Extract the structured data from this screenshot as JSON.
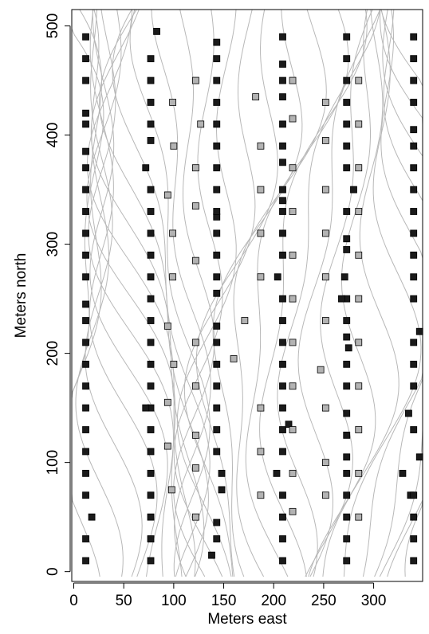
{
  "chart_data": {
    "type": "scatter",
    "x_label": "Meters east",
    "y_label": "Meters north",
    "xlim": [
      -2,
      349
    ],
    "ylim": [
      -9,
      515
    ],
    "xticks": [
      0,
      50,
      100,
      150,
      200,
      250,
      300
    ],
    "yticks": [
      0,
      100,
      200,
      300,
      400,
      500
    ],
    "series": [
      {
        "color": "#1a1a1a",
        "x": [
          12,
          12,
          12,
          12,
          12,
          12,
          12,
          12,
          12,
          12,
          12,
          12,
          12,
          12,
          12,
          12,
          12,
          12,
          12,
          12,
          12,
          12,
          12,
          12,
          18,
          77,
          77,
          77,
          77,
          77,
          77,
          77,
          77,
          77,
          77,
          77,
          77,
          77,
          77,
          77,
          77,
          77,
          77,
          72,
          77,
          77,
          77,
          77,
          77,
          83,
          72,
          138,
          143,
          143,
          148,
          148,
          143,
          143,
          143,
          143,
          143,
          143,
          143,
          143,
          143,
          143,
          143,
          143,
          143,
          143,
          143,
          143,
          143,
          143,
          143,
          143,
          143,
          209,
          209,
          209,
          209,
          203,
          209,
          209,
          215,
          209,
          209,
          209,
          209,
          209,
          209,
          204,
          209,
          209,
          209,
          209,
          209,
          209,
          209,
          209,
          209,
          209,
          209,
          209,
          273,
          273,
          273,
          273,
          273,
          273,
          273,
          273,
          273,
          273,
          275,
          273,
          273,
          273,
          271,
          273,
          273,
          273,
          280,
          273,
          273,
          273,
          273,
          273,
          273,
          273,
          268,
          340,
          340,
          340,
          337,
          329,
          346,
          340,
          335,
          340,
          340,
          340,
          346,
          340,
          340,
          340,
          340,
          340,
          340,
          340,
          340,
          340,
          340,
          340,
          340,
          340,
          340
        ],
        "values": [
          10,
          30,
          70,
          90,
          110,
          130,
          150,
          170,
          190,
          210,
          230,
          245,
          270,
          290,
          310,
          330,
          350,
          370,
          385,
          410,
          420,
          450,
          470,
          490,
          50,
          10,
          30,
          50,
          70,
          90,
          110,
          130,
          150,
          170,
          190,
          210,
          230,
          250,
          270,
          290,
          310,
          330,
          350,
          370,
          395,
          410,
          430,
          450,
          470,
          495,
          150,
          15,
          30,
          45,
          75,
          90,
          110,
          130,
          150,
          170,
          190,
          210,
          225,
          255,
          270,
          290,
          310,
          325,
          330,
          350,
          370,
          390,
          410,
          430,
          450,
          470,
          485,
          10,
          30,
          50,
          70,
          90,
          110,
          130,
          135,
          150,
          170,
          190,
          210,
          230,
          250,
          270,
          290,
          310,
          330,
          340,
          350,
          375,
          390,
          410,
          435,
          450,
          465,
          490,
          10,
          30,
          50,
          70,
          90,
          105,
          125,
          145,
          170,
          190,
          205,
          215,
          230,
          250,
          270,
          295,
          305,
          330,
          350,
          370,
          390,
          410,
          430,
          450,
          470,
          490,
          250,
          10,
          30,
          50,
          70,
          90,
          105,
          130,
          145,
          170,
          190,
          210,
          220,
          250,
          270,
          290,
          310,
          330,
          350,
          370,
          390,
          405,
          430,
          450,
          470,
          490,
          70
        ]
      },
      {
        "color": "#b3b3b3",
        "x": [
          98,
          94,
          94,
          100,
          94,
          99,
          99,
          100,
          99,
          94,
          122,
          122,
          122,
          122,
          122,
          122,
          122,
          122,
          127,
          122,
          160,
          171,
          187,
          187,
          187,
          187,
          187,
          187,
          187,
          182,
          219,
          219,
          219,
          219,
          219,
          219,
          219,
          219,
          219,
          219,
          219,
          252,
          252,
          252,
          252,
          247,
          252,
          252,
          252,
          252,
          252,
          285,
          285,
          285,
          285,
          285,
          285,
          285,
          285,
          285,
          285,
          285
        ],
        "values": [
          75,
          115,
          155,
          190,
          225,
          270,
          310,
          390,
          430,
          345,
          50,
          95,
          125,
          170,
          210,
          285,
          335,
          370,
          410,
          450,
          195,
          230,
          70,
          110,
          150,
          270,
          310,
          350,
          390,
          435,
          55,
          90,
          130,
          170,
          210,
          250,
          290,
          330,
          370,
          415,
          450,
          70,
          100,
          150,
          230,
          185,
          270,
          310,
          350,
          395,
          430,
          50,
          90,
          130,
          170,
          210,
          250,
          290,
          330,
          370,
          410,
          450
        ]
      }
    ]
  }
}
